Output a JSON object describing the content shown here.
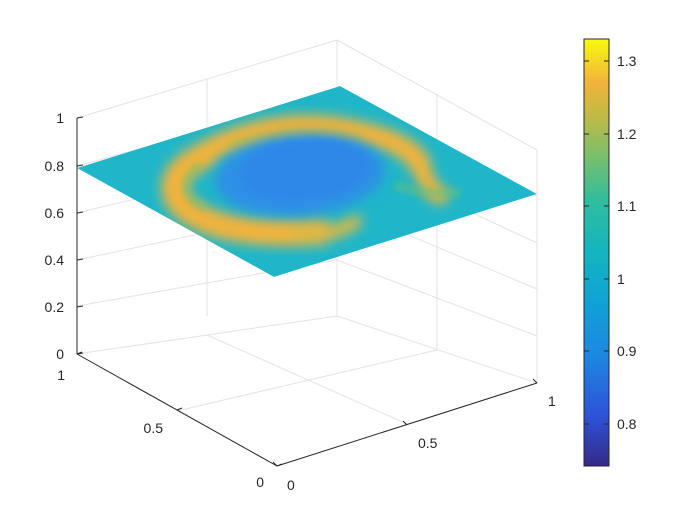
{
  "chart_data": {
    "type": "surface",
    "view": "3d",
    "colormap": "parula",
    "grid": true,
    "plane_z": 0.8,
    "xlim": [
      0,
      1
    ],
    "ylim": [
      0,
      1
    ],
    "zlim": [
      0,
      1
    ],
    "clim": [
      0.74,
      1.33
    ],
    "description_values": {
      "center_value": 0.93,
      "ring_value": 1.22,
      "background_value": 1.0
    },
    "x_ticks": [
      "0",
      "0.5",
      "1"
    ],
    "y_ticks": [
      "0",
      "0.5",
      "1"
    ],
    "z_ticks": [
      "0",
      "0.2",
      "0.4",
      "0.6",
      "0.8",
      "1"
    ],
    "colorbar_ticks": [
      "0.8",
      "0.9",
      "1",
      "1.1",
      "1.2",
      "1.3"
    ]
  },
  "colors": {
    "background_field": "#1fb6c9",
    "center_blob": "#2f8fe6",
    "ring": "#f2b33a",
    "grid_line": "#e0e0e0",
    "axis_line": "#262626"
  }
}
